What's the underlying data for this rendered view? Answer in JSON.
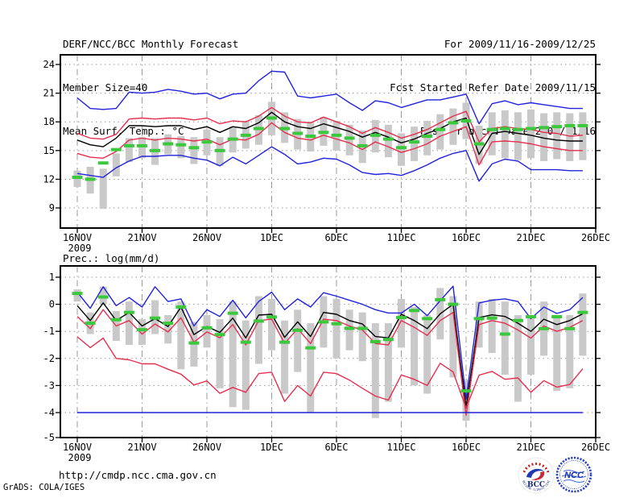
{
  "header": {
    "title": "DERF/NCC/BCC Monthly Forecast",
    "member_size": "Member Size=40",
    "range": "For 2009/11/16-2009/12/25",
    "refer_date": "Fcst Started Refer Date 2009/11/15",
    "produced_date": "Fcst Produced Date 2009/11/16"
  },
  "footer": {
    "url": "http://cmdp.ncc.cma.gov.cn",
    "credit": "GrADS: COLA/IGES",
    "bcc_logo_text": "BCC",
    "bcc_logo_subtext": "BEIJING CLIMATE CENTER",
    "ncc_logo_text": "NCC"
  },
  "colors": {
    "blue": "#2222dd",
    "red": "#e62e4e",
    "black": "#000000",
    "green": "#3cc83c",
    "gray": "#c9c9c9",
    "grid": "#999999",
    "frame": "#000000"
  },
  "chart_data": [
    {
      "id": "surface-temperature",
      "type": "line",
      "title": "Mean Surf. Temp.: °C",
      "start_date": "16NOV2009",
      "end_date": "25DEC2009",
      "n_days": 40,
      "x_ticklabels": [
        "16NOV",
        "21NOV",
        "26NOV",
        "1DEC",
        "6DEC",
        "11DEC",
        "16DEC",
        "21DEC",
        "26DEC"
      ],
      "x_tick_year": "2009",
      "y_ticks": [
        24,
        21,
        18,
        15,
        12,
        9
      ],
      "ylim": [
        6.9,
        25.0
      ],
      "grid": true,
      "series": [
        {
          "name": "member-max",
          "color": "blue",
          "values": [
            20.5,
            19.4,
            19.3,
            19.4,
            21.1,
            21.0,
            21.1,
            21.4,
            21.2,
            20.9,
            21.0,
            20.4,
            20.9,
            21.0,
            22.3,
            23.3,
            23.2,
            20.7,
            20.5,
            20.7,
            20.9,
            20.0,
            19.2,
            20.2,
            20.0,
            19.5,
            19.9,
            20.3,
            20.3,
            20.6,
            20.9,
            17.8,
            19.9,
            20.2,
            19.8,
            20.0,
            19.8,
            19.6,
            19.4,
            19.4
          ]
        },
        {
          "name": "upper-band",
          "color": "red",
          "values": [
            16.8,
            16.3,
            16.2,
            16.7,
            18.3,
            18.4,
            18.3,
            18.4,
            18.4,
            18.2,
            18.4,
            17.8,
            18.1,
            18.0,
            18.6,
            19.5,
            18.6,
            18.0,
            17.9,
            18.5,
            18.0,
            17.5,
            16.8,
            17.4,
            16.9,
            16.3,
            16.7,
            17.2,
            17.9,
            18.6,
            19.1,
            15.9,
            17.3,
            17.5,
            17.3,
            17.2,
            16.9,
            16.8,
            16.5,
            16.6
          ]
        },
        {
          "name": "ensemble-mean",
          "color": "black",
          "values": [
            16.1,
            15.6,
            15.4,
            16.3,
            17.6,
            17.6,
            17.5,
            17.6,
            17.6,
            17.2,
            17.5,
            16.9,
            17.5,
            17.3,
            17.9,
            19.0,
            18.0,
            17.5,
            17.3,
            17.8,
            17.4,
            17.0,
            16.4,
            16.9,
            16.4,
            15.8,
            16.2,
            16.8,
            17.3,
            18.0,
            18.4,
            14.6,
            16.8,
            17.0,
            16.8,
            16.6,
            16.3,
            16.1,
            16.0,
            16.0
          ]
        },
        {
          "name": "lower-band",
          "color": "red",
          "values": [
            14.7,
            14.3,
            14.2,
            14.9,
            16.1,
            16.3,
            16.1,
            16.3,
            16.2,
            16.0,
            16.2,
            15.6,
            16.2,
            16.1,
            16.7,
            17.9,
            16.9,
            16.3,
            16.1,
            16.6,
            16.2,
            15.8,
            15.1,
            15.9,
            15.4,
            14.8,
            15.2,
            15.7,
            16.5,
            17.0,
            17.5,
            13.5,
            15.9,
            16.0,
            15.9,
            15.7,
            15.4,
            15.2,
            15.0,
            15.0
          ]
        },
        {
          "name": "member-min",
          "color": "blue",
          "values": [
            12.6,
            12.4,
            12.2,
            13.2,
            13.9,
            14.4,
            14.4,
            14.5,
            14.5,
            14.2,
            14.0,
            13.4,
            14.3,
            13.6,
            14.5,
            15.4,
            14.6,
            13.6,
            13.8,
            14.2,
            14.1,
            13.5,
            12.7,
            12.5,
            12.6,
            12.4,
            12.9,
            13.5,
            14.2,
            14.7,
            15.0,
            11.8,
            13.6,
            14.1,
            13.9,
            13.0,
            13.0,
            13.0,
            12.9,
            12.9
          ]
        }
      ],
      "median_markers": {
        "color": "green",
        "values": [
          12.2,
          12.0,
          13.7,
          15.1,
          15.5,
          15.5,
          15.0,
          15.7,
          15.6,
          15.3,
          15.9,
          15.0,
          16.2,
          16.6,
          17.3,
          18.4,
          17.3,
          16.8,
          16.5,
          16.9,
          16.6,
          16.3,
          15.5,
          16.6,
          16.2,
          15.3,
          15.9,
          16.5,
          17.2,
          17.9,
          18.1,
          15.7,
          17.2,
          17.3,
          17.2,
          17.3,
          17.4,
          17.5,
          17.6,
          17.6
        ]
      },
      "spread_bars": {
        "color": "gray",
        "ranges": [
          [
            11.2,
            12.9
          ],
          [
            10.5,
            13.3
          ],
          [
            8.9,
            13.1
          ],
          [
            12.3,
            14.7
          ],
          [
            13.8,
            16.3
          ],
          [
            14.2,
            16.4
          ],
          [
            13.5,
            16.3
          ],
          [
            14.6,
            16.7
          ],
          [
            14.2,
            16.5
          ],
          [
            13.6,
            16.4
          ],
          [
            14.5,
            17.2
          ],
          [
            13.4,
            16.4
          ],
          [
            14.8,
            17.5
          ],
          [
            15.2,
            18.1
          ],
          [
            15.6,
            18.7
          ],
          [
            16.6,
            20.1
          ],
          [
            15.8,
            19.0
          ],
          [
            15.1,
            18.3
          ],
          [
            14.9,
            18.0
          ],
          [
            15.5,
            18.5
          ],
          [
            15.0,
            18.1
          ],
          [
            14.5,
            17.7
          ],
          [
            13.7,
            17.1
          ],
          [
            14.8,
            18.2
          ],
          [
            14.3,
            17.7
          ],
          [
            13.4,
            16.8
          ],
          [
            13.9,
            17.5
          ],
          [
            14.5,
            18.1
          ],
          [
            15.1,
            18.8
          ],
          [
            15.6,
            19.4
          ],
          [
            16.2,
            20.0
          ],
          [
            13.6,
            17.6
          ],
          [
            14.5,
            19.0
          ],
          [
            14.2,
            19.2
          ],
          [
            14.0,
            19.0
          ],
          [
            14.2,
            19.3
          ],
          [
            13.9,
            18.9
          ],
          [
            14.1,
            19.0
          ],
          [
            13.9,
            18.9
          ],
          [
            14.0,
            19.0
          ]
        ]
      }
    },
    {
      "id": "precipitation",
      "type": "line",
      "title": "Prec.: log(mm/d)",
      "start_date": "16NOV2009",
      "end_date": "25DEC2009",
      "n_days": 40,
      "x_ticklabels": [
        "16NOV",
        "21NOV",
        "26NOV",
        "1DEC",
        "6DEC",
        "11DEC",
        "16DEC",
        "21DEC",
        "26DEC"
      ],
      "x_tick_year": "2009",
      "y_ticks": [
        1,
        0,
        -1,
        -2,
        -3,
        -4,
        -5
      ],
      "ylim": [
        -4.9,
        1.4
      ],
      "grid": true,
      "series": [
        {
          "name": "member-max",
          "color": "blue",
          "values": [
            0.45,
            -0.15,
            0.65,
            -0.05,
            0.25,
            -0.1,
            0.65,
            0.1,
            0.2,
            -0.8,
            -0.2,
            -0.45,
            0.15,
            -0.5,
            0.1,
            0.45,
            -0.2,
            0.2,
            -0.1,
            0.43,
            0.3,
            0.15,
            0.0,
            -0.2,
            -0.32,
            -0.32,
            0.0,
            -0.42,
            0.13,
            0.67,
            -3.5,
            0.05,
            0.15,
            0.2,
            0.1,
            -0.53,
            -0.1,
            -0.34,
            -0.2,
            0.25
          ]
        },
        {
          "name": "ensemble-mean",
          "color": "black",
          "values": [
            -0.05,
            -0.6,
            0.05,
            -0.6,
            -0.3,
            -0.8,
            -0.53,
            -0.82,
            -0.1,
            -1.12,
            -0.82,
            -1.04,
            -0.51,
            -1.24,
            -0.4,
            -0.37,
            -1.22,
            -0.65,
            -1.19,
            -0.3,
            -0.37,
            -0.6,
            -0.73,
            -1.19,
            -1.24,
            -0.37,
            -0.6,
            -0.9,
            -0.35,
            0.0,
            -3.8,
            -0.49,
            -0.39,
            -0.45,
            -0.7,
            -1.0,
            -0.55,
            -0.75,
            -0.6,
            -0.35
          ]
        },
        {
          "name": "upper-band",
          "color": "red",
          "values": [
            -0.45,
            -0.9,
            -0.2,
            -0.8,
            -0.6,
            -1.1,
            -0.73,
            -1.02,
            -0.5,
            -1.4,
            -1.02,
            -1.24,
            -0.75,
            -1.5,
            -0.6,
            -0.55,
            -1.45,
            -0.9,
            -1.45,
            -0.55,
            -0.6,
            -0.8,
            -0.95,
            -1.45,
            -1.5,
            -0.6,
            -0.85,
            -1.15,
            -0.6,
            -0.3,
            -4.1,
            -0.75,
            -0.6,
            -0.7,
            -0.95,
            -1.25,
            -0.8,
            -1.0,
            -0.85,
            -0.6
          ]
        },
        {
          "name": "lower-band",
          "color": "red",
          "values": [
            -1.2,
            -1.6,
            -1.25,
            -2.0,
            -2.05,
            -2.2,
            -2.2,
            -2.4,
            -2.58,
            -2.98,
            -2.83,
            -3.29,
            -3.07,
            -3.25,
            -2.56,
            -2.51,
            -3.59,
            -3.0,
            -3.39,
            -2.51,
            -2.56,
            -2.8,
            -3.1,
            -3.39,
            -3.54,
            -2.61,
            -2.77,
            -3.0,
            -2.18,
            -2.5,
            -3.83,
            -2.62,
            -2.48,
            -2.77,
            -2.72,
            -3.25,
            -2.82,
            -3.06,
            -2.96,
            -2.38
          ]
        },
        {
          "name": "member-min",
          "color": "blue",
          "values": [
            -4.0,
            -4.0,
            -4.0,
            -4.0,
            -4.0,
            -4.0,
            -4.0,
            -4.0,
            -4.0,
            -4.0,
            -4.0,
            -4.0,
            -4.0,
            -4.0,
            -4.0,
            -4.0,
            -4.0,
            -4.0,
            -4.0,
            -4.0,
            -4.0,
            -4.0,
            -4.0,
            -4.0,
            -4.0,
            -4.0,
            -4.0,
            -4.0,
            -4.0,
            -4.0,
            -4.0,
            -4.0,
            -4.0,
            -4.0,
            -4.0,
            -4.0,
            -4.0,
            -4.0,
            -4.0,
            -4.0
          ]
        }
      ],
      "median_markers": {
        "color": "green",
        "values": [
          0.4,
          -0.7,
          0.27,
          -0.57,
          -0.3,
          -0.94,
          -0.51,
          -0.7,
          -0.1,
          -1.43,
          -0.87,
          -1.12,
          -0.33,
          -1.4,
          -0.62,
          -0.47,
          -1.4,
          -0.96,
          -1.61,
          -0.65,
          -0.72,
          -0.89,
          -0.89,
          -1.38,
          -1.3,
          -0.49,
          -0.23,
          -0.53,
          0.17,
          0.0,
          -3.2,
          -0.53,
          -0.51,
          -1.1,
          -0.6,
          -0.46,
          -0.9,
          -0.46,
          -0.9,
          -0.3
        ]
      },
      "spread_bars": {
        "color": "gray",
        "ranges": [
          [
            0.1,
            0.55
          ],
          [
            -1.1,
            -0.3
          ],
          [
            0.0,
            0.65
          ],
          [
            -1.35,
            -0.25
          ],
          [
            -1.5,
            0.1
          ],
          [
            -1.5,
            -0.55
          ],
          [
            -1.1,
            0.15
          ],
          [
            -1.45,
            -0.4
          ],
          [
            -2.4,
            0.1
          ],
          [
            -2.3,
            -0.65
          ],
          [
            -1.6,
            -0.4
          ],
          [
            -3.1,
            -0.55
          ],
          [
            -3.8,
            0.1
          ],
          [
            -3.9,
            -0.6
          ],
          [
            -2.2,
            0.3
          ],
          [
            -1.7,
            0.2
          ],
          [
            -3.3,
            -0.6
          ],
          [
            -2.5,
            -0.2
          ],
          [
            -4.0,
            -0.7
          ],
          [
            -1.6,
            0.3
          ],
          [
            -2.0,
            0.2
          ],
          [
            -1.7,
            -0.2
          ],
          [
            -2.1,
            -0.3
          ],
          [
            -4.2,
            -0.7
          ],
          [
            -3.6,
            -0.7
          ],
          [
            -1.6,
            0.2
          ],
          [
            -3.0,
            -0.1
          ],
          [
            -3.3,
            -0.4
          ],
          [
            -1.3,
            0.6
          ],
          [
            -2.7,
            0.3
          ],
          [
            -4.3,
            -2.8
          ],
          [
            -1.6,
            0.1
          ],
          [
            -1.8,
            0.2
          ],
          [
            -2.6,
            0.1
          ],
          [
            -3.6,
            -0.4
          ],
          [
            -2.6,
            -0.5
          ],
          [
            -1.9,
            0.1
          ],
          [
            -3.2,
            -0.5
          ],
          [
            -3.1,
            -0.4
          ],
          [
            -1.9,
            0.4
          ]
        ]
      }
    }
  ]
}
